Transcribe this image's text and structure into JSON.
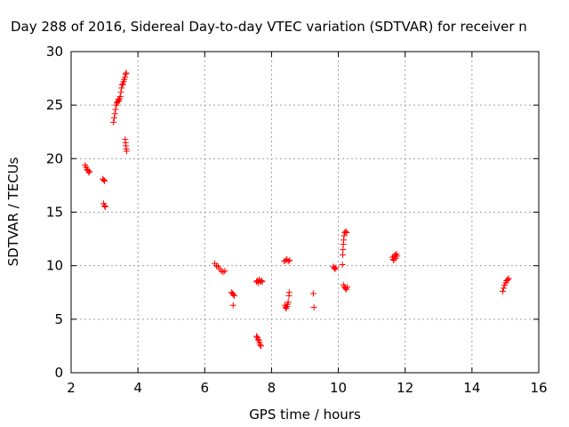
{
  "chart_data": {
    "type": "scatter",
    "title": "Day 288 of 2016, Sidereal Day-to-day VTEC variation (SDTVAR) for receiver n",
    "xlabel": "GPS time / hours",
    "ylabel": "SDTVAR / TECUs",
    "xlim": [
      2,
      16
    ],
    "ylim": [
      0,
      30
    ],
    "xticks": [
      2,
      4,
      6,
      8,
      10,
      12,
      14,
      16
    ],
    "yticks": [
      0,
      5,
      10,
      15,
      20,
      25,
      30
    ],
    "grid": true,
    "marker": "plus",
    "color": "#ff0000",
    "points": [
      [
        2.42,
        19.4
      ],
      [
        2.45,
        19.2
      ],
      [
        2.48,
        19.0
      ],
      [
        2.5,
        18.9
      ],
      [
        2.53,
        18.7
      ],
      [
        2.55,
        18.8
      ],
      [
        2.95,
        18.1
      ],
      [
        2.98,
        18.0
      ],
      [
        3.0,
        17.9
      ],
      [
        2.97,
        15.8
      ],
      [
        3.0,
        15.6
      ],
      [
        3.02,
        15.5
      ],
      [
        3.27,
        23.4
      ],
      [
        3.29,
        23.8
      ],
      [
        3.31,
        24.2
      ],
      [
        3.33,
        24.6
      ],
      [
        3.35,
        25.0
      ],
      [
        3.37,
        25.2
      ],
      [
        3.39,
        25.3
      ],
      [
        3.41,
        25.5
      ],
      [
        3.43,
        25.4
      ],
      [
        3.45,
        25.6
      ],
      [
        3.47,
        25.8
      ],
      [
        3.49,
        26.2
      ],
      [
        3.51,
        26.6
      ],
      [
        3.53,
        26.9
      ],
      [
        3.55,
        27.0
      ],
      [
        3.57,
        27.2
      ],
      [
        3.59,
        27.4
      ],
      [
        3.61,
        27.6
      ],
      [
        3.63,
        27.9
      ],
      [
        3.65,
        28.0
      ],
      [
        3.62,
        21.8
      ],
      [
        3.63,
        21.5
      ],
      [
        3.64,
        21.2
      ],
      [
        3.65,
        20.9
      ],
      [
        3.66,
        20.7
      ],
      [
        6.3,
        10.2
      ],
      [
        6.35,
        10.0
      ],
      [
        6.4,
        9.9
      ],
      [
        6.45,
        9.7
      ],
      [
        6.5,
        9.5
      ],
      [
        6.55,
        9.4
      ],
      [
        6.6,
        9.5
      ],
      [
        6.8,
        7.5
      ],
      [
        6.83,
        7.4
      ],
      [
        6.86,
        7.3
      ],
      [
        6.88,
        7.2
      ],
      [
        6.85,
        6.3
      ],
      [
        7.55,
        8.5
      ],
      [
        7.58,
        8.6
      ],
      [
        7.6,
        8.4
      ],
      [
        7.63,
        8.7
      ],
      [
        7.66,
        8.5
      ],
      [
        7.7,
        8.6
      ],
      [
        7.72,
        8.5
      ],
      [
        7.55,
        3.4
      ],
      [
        7.58,
        3.3
      ],
      [
        7.6,
        3.1
      ],
      [
        7.62,
        3.0
      ],
      [
        7.64,
        2.8
      ],
      [
        7.66,
        2.6
      ],
      [
        7.68,
        2.5
      ],
      [
        8.38,
        10.4
      ],
      [
        8.42,
        10.5
      ],
      [
        8.46,
        10.6
      ],
      [
        8.5,
        10.4
      ],
      [
        8.54,
        10.5
      ],
      [
        8.4,
        6.3
      ],
      [
        8.42,
        6.1
      ],
      [
        8.44,
        6.0
      ],
      [
        8.46,
        6.2
      ],
      [
        8.48,
        6.4
      ],
      [
        8.5,
        6.6
      ],
      [
        8.52,
        7.2
      ],
      [
        8.53,
        7.5
      ],
      [
        9.25,
        7.4
      ],
      [
        9.27,
        6.1
      ],
      [
        9.85,
        9.9
      ],
      [
        9.88,
        9.8
      ],
      [
        9.9,
        9.7
      ],
      [
        9.93,
        9.8
      ],
      [
        10.12,
        10.1
      ],
      [
        10.13,
        11.0
      ],
      [
        10.14,
        11.5
      ],
      [
        10.15,
        12.0
      ],
      [
        10.16,
        12.4
      ],
      [
        10.17,
        12.8
      ],
      [
        10.19,
        13.1
      ],
      [
        10.22,
        13.2
      ],
      [
        10.25,
        13.1
      ],
      [
        10.15,
        8.2
      ],
      [
        10.18,
        8.0
      ],
      [
        10.21,
        7.9
      ],
      [
        10.24,
        7.8
      ],
      [
        10.27,
        8.0
      ],
      [
        11.62,
        10.8
      ],
      [
        11.64,
        10.6
      ],
      [
        11.66,
        10.5
      ],
      [
        11.68,
        10.9
      ],
      [
        11.7,
        11.0
      ],
      [
        11.72,
        10.7
      ],
      [
        11.74,
        11.1
      ],
      [
        11.76,
        10.9
      ],
      [
        14.92,
        7.6
      ],
      [
        14.95,
        7.9
      ],
      [
        14.98,
        8.2
      ],
      [
        15.01,
        8.4
      ],
      [
        15.04,
        8.6
      ],
      [
        15.07,
        8.7
      ],
      [
        15.1,
        8.8
      ]
    ]
  }
}
